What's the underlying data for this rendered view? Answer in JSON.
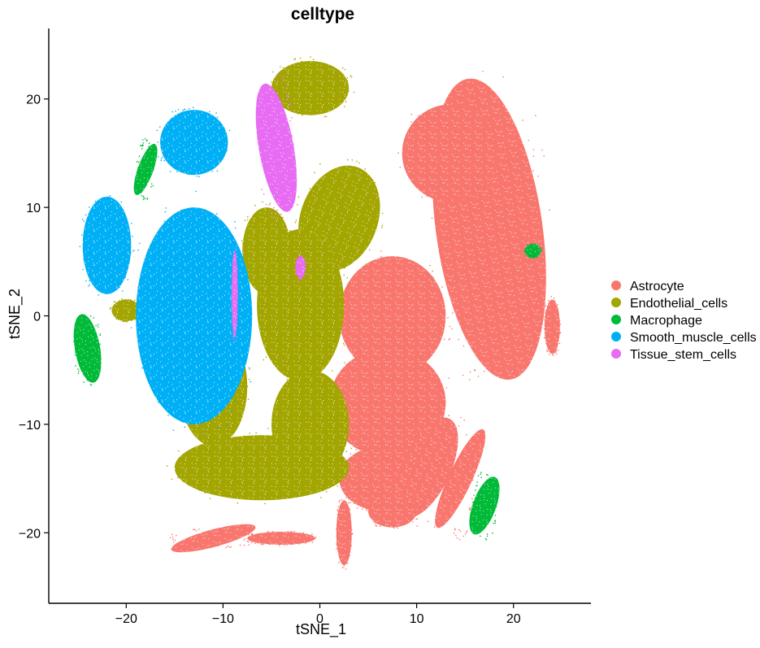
{
  "chart_data": {
    "type": "scatter",
    "title": "celltype",
    "xlabel": "tSNE_1",
    "ylabel": "tSNE_2",
    "xlim": [
      -28,
      28
    ],
    "ylim": [
      -26.5,
      26.5
    ],
    "xticks": [
      -20,
      -10,
      0,
      10,
      20
    ],
    "xtick_labels": [
      "−20",
      "−10",
      "0",
      "10",
      "20"
    ],
    "yticks": [
      -20,
      -10,
      0,
      10,
      20
    ],
    "ytick_labels": [
      "−20",
      "−10",
      "0",
      "10",
      "20"
    ],
    "grid": false,
    "legend_position": "right",
    "series": [
      {
        "name": "Astrocyte",
        "color": "#F8766D",
        "regions": [
          {
            "cx": 17.5,
            "cy": 8,
            "rx": 5.5,
            "ry": 14,
            "rot": -8
          },
          {
            "cx": 13.5,
            "cy": 15,
            "rx": 5,
            "ry": 4.5,
            "rot": 0
          },
          {
            "cx": 7.5,
            "cy": 0,
            "rx": 5.5,
            "ry": 5.5,
            "rot": 0
          },
          {
            "cx": 7,
            "cy": -8,
            "rx": 6,
            "ry": 5,
            "rot": 0
          },
          {
            "cx": 6.5,
            "cy": -15,
            "rx": 4.5,
            "ry": 3,
            "rot": 0
          },
          {
            "cx": 11,
            "cy": -14,
            "rx": 2.5,
            "ry": 5,
            "rot": 25
          },
          {
            "cx": 14.5,
            "cy": -15,
            "rx": 1.2,
            "ry": 5,
            "rot": 25
          },
          {
            "cx": 7.5,
            "cy": -18,
            "rx": 2.5,
            "ry": 1.5,
            "rot": 0
          },
          {
            "cx": -11,
            "cy": -20.5,
            "rx": 4.5,
            "ry": 0.8,
            "rot": -15
          },
          {
            "cx": -4,
            "cy": -20.5,
            "rx": 3.5,
            "ry": 0.6,
            "rot": 0
          },
          {
            "cx": 2.5,
            "cy": -20,
            "rx": 0.8,
            "ry": 3,
            "rot": 0
          },
          {
            "cx": 24,
            "cy": -1,
            "rx": 0.8,
            "ry": 2.5,
            "rot": 0
          }
        ],
        "points": [
          {
            "x": 15,
            "y": 16
          },
          {
            "x": 20,
            "y": 10
          },
          {
            "x": 19,
            "y": 0
          },
          {
            "x": 16,
            "y": -5
          },
          {
            "x": 8,
            "y": 3
          },
          {
            "x": 6,
            "y": -10
          },
          {
            "x": 10,
            "y": -6
          },
          {
            "x": 5,
            "y": -15
          },
          {
            "x": 12,
            "y": -16
          },
          {
            "x": -11,
            "y": -21
          },
          {
            "x": 3,
            "y": -22
          },
          {
            "x": 24,
            "y": -2
          }
        ]
      },
      {
        "name": "Endothelial_cells",
        "color": "#A3A500",
        "regions": [
          {
            "cx": -1,
            "cy": 21,
            "rx": 4,
            "ry": 2.5,
            "rot": 0
          },
          {
            "cx": 2,
            "cy": 9,
            "rx": 4,
            "ry": 5,
            "rot": 20
          },
          {
            "cx": -2,
            "cy": 1,
            "rx": 4.5,
            "ry": 7,
            "rot": 0
          },
          {
            "cx": -1,
            "cy": -10,
            "rx": 4,
            "ry": 5,
            "rot": 0
          },
          {
            "cx": -6,
            "cy": -14,
            "rx": 9,
            "ry": 3,
            "rot": 0
          },
          {
            "cx": -11,
            "cy": -6.5,
            "rx": 3.5,
            "ry": 5.5,
            "rot": 0
          },
          {
            "cx": -5.5,
            "cy": 6,
            "rx": 2.5,
            "ry": 4,
            "rot": 0
          },
          {
            "cx": -20,
            "cy": 0.5,
            "rx": 1.5,
            "ry": 1,
            "rot": 0
          }
        ],
        "points": [
          {
            "x": -1,
            "y": 21
          },
          {
            "x": 2,
            "y": 10
          },
          {
            "x": -2,
            "y": 0
          },
          {
            "x": -1,
            "y": -10
          },
          {
            "x": -8,
            "y": -14
          },
          {
            "x": -11,
            "y": -7
          },
          {
            "x": -20,
            "y": 0
          }
        ]
      },
      {
        "name": "Macrophage",
        "color": "#00BA38",
        "regions": [
          {
            "cx": -24,
            "cy": -3,
            "rx": 1.3,
            "ry": 3.2,
            "rot": -10
          },
          {
            "cx": -18,
            "cy": 13.5,
            "rx": 0.8,
            "ry": 2.5,
            "rot": 20
          },
          {
            "cx": 17,
            "cy": -17.5,
            "rx": 1.2,
            "ry": 2.8,
            "rot": 20
          },
          {
            "cx": 22,
            "cy": 6,
            "rx": 0.8,
            "ry": 0.6,
            "rot": 0
          }
        ],
        "points": [
          {
            "x": -24,
            "y": -3
          },
          {
            "x": -18,
            "y": 13
          },
          {
            "x": 17,
            "y": -18
          },
          {
            "x": 22,
            "y": 6
          }
        ]
      },
      {
        "name": "Smooth_muscle_cells",
        "color": "#00B0F6",
        "regions": [
          {
            "cx": -13,
            "cy": 0,
            "rx": 6,
            "ry": 10,
            "rot": 0
          },
          {
            "cx": -22,
            "cy": 6.5,
            "rx": 2.5,
            "ry": 4.5,
            "rot": 0
          },
          {
            "cx": -13,
            "cy": 16,
            "rx": 3.5,
            "ry": 3,
            "rot": 0
          }
        ],
        "points": [
          {
            "x": -13,
            "y": 0
          },
          {
            "x": -22,
            "y": 7
          },
          {
            "x": -13,
            "y": 16
          }
        ]
      },
      {
        "name": "Tissue_stem_cells",
        "color": "#E76BF3",
        "regions": [
          {
            "cx": -4.5,
            "cy": 15.5,
            "rx": 1.8,
            "ry": 6,
            "rot": -10
          },
          {
            "cx": -2,
            "cy": 4.5,
            "rx": 0.5,
            "ry": 1,
            "rot": 0
          },
          {
            "cx": -8.8,
            "cy": 2,
            "rx": 0.3,
            "ry": 4,
            "rot": 0
          }
        ],
        "points": [
          {
            "x": -4.5,
            "y": 16
          },
          {
            "x": -2,
            "y": 4.5
          },
          {
            "x": -8.8,
            "y": 2
          }
        ]
      }
    ]
  }
}
